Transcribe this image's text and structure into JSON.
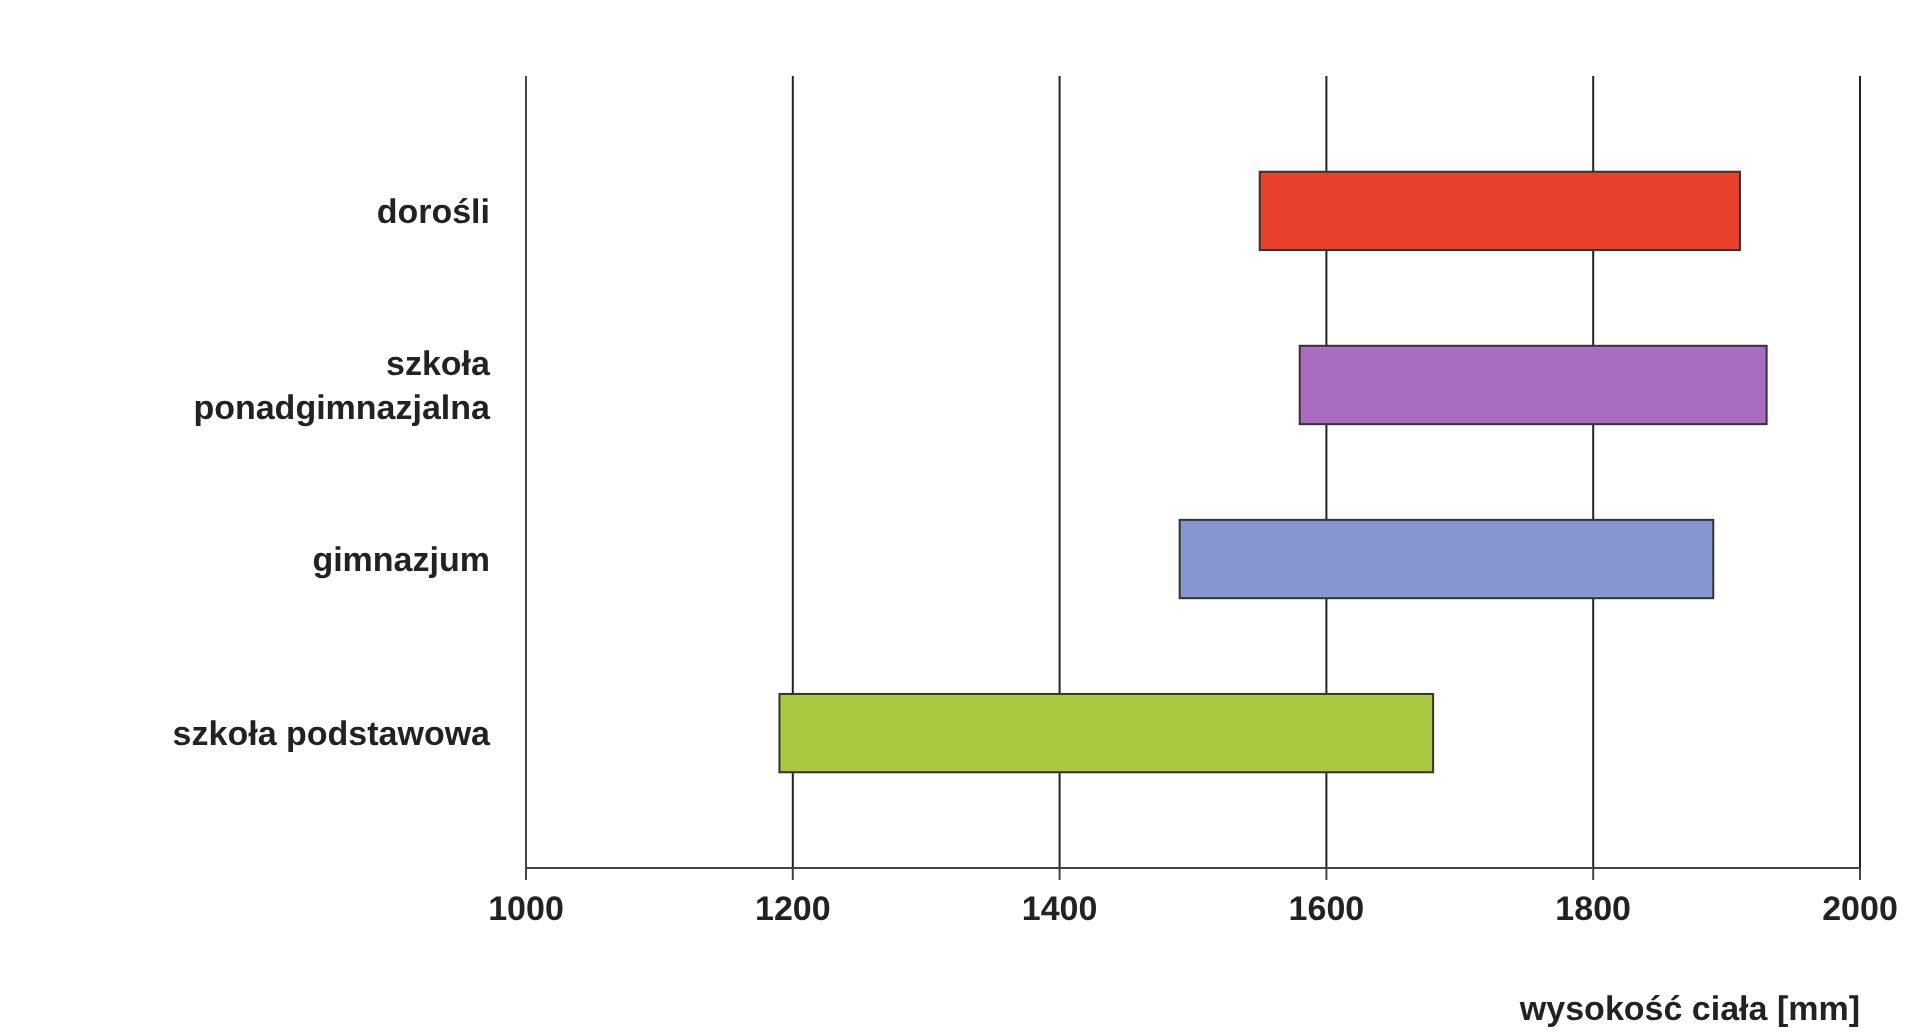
{
  "chart_data": {
    "type": "bar",
    "orientation": "horizontal",
    "xlabel": "wysokość ciała [mm]",
    "categories": [
      "dorośli",
      "szkoła ponadgimnazjalna",
      "gimnazjum",
      "szkoła podstawowa"
    ],
    "base": [
      1550,
      1580,
      1490,
      1190
    ],
    "values": [
      360,
      350,
      400,
      490
    ],
    "colors": [
      "#e8402a",
      "#a96cc0",
      "#8596d0",
      "#a8c840"
    ],
    "xlim": [
      1000,
      2000
    ],
    "xticks": [
      1000,
      1200,
      1400,
      1600,
      1800,
      2000
    ],
    "grid": "x"
  }
}
